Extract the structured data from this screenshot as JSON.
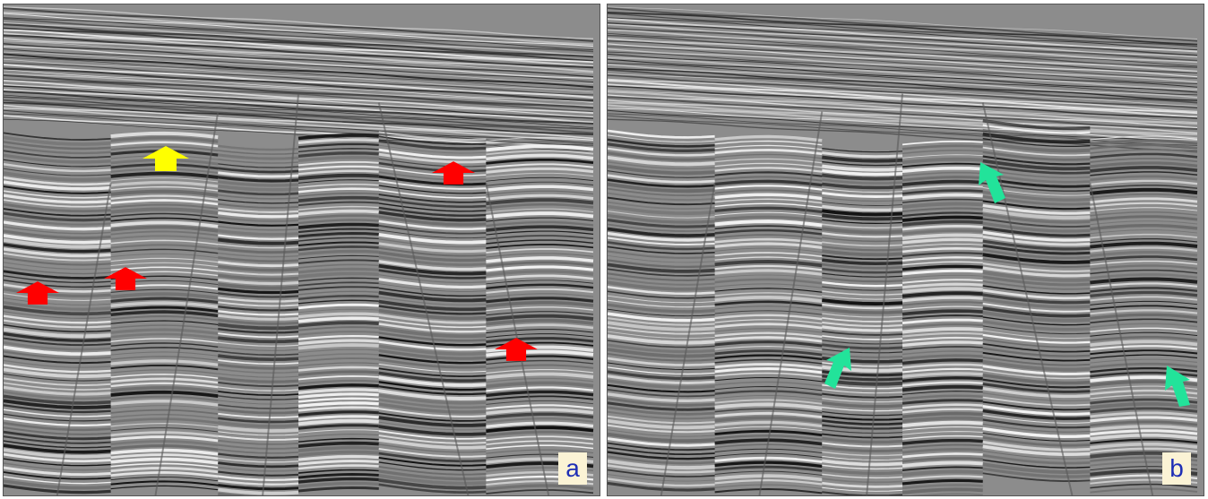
{
  "panels": [
    {
      "id": "a",
      "label": "a",
      "markers": [
        {
          "color": "#ffff00",
          "icon": "arrow-up-icon"
        },
        {
          "color": "#ff0000",
          "icon": "arrow-up-icon"
        },
        {
          "color": "#ff0000",
          "icon": "arrow-up-icon"
        },
        {
          "color": "#ff0000",
          "icon": "arrow-up-icon"
        },
        {
          "color": "#ff0000",
          "icon": "arrow-up-icon"
        }
      ]
    },
    {
      "id": "b",
      "label": "b",
      "markers": [
        {
          "color": "#22e39a",
          "icon": "arrow-icon"
        },
        {
          "color": "#22e39a",
          "icon": "arrow-icon"
        },
        {
          "color": "#22e39a",
          "icon": "arrow-icon"
        }
      ]
    }
  ]
}
